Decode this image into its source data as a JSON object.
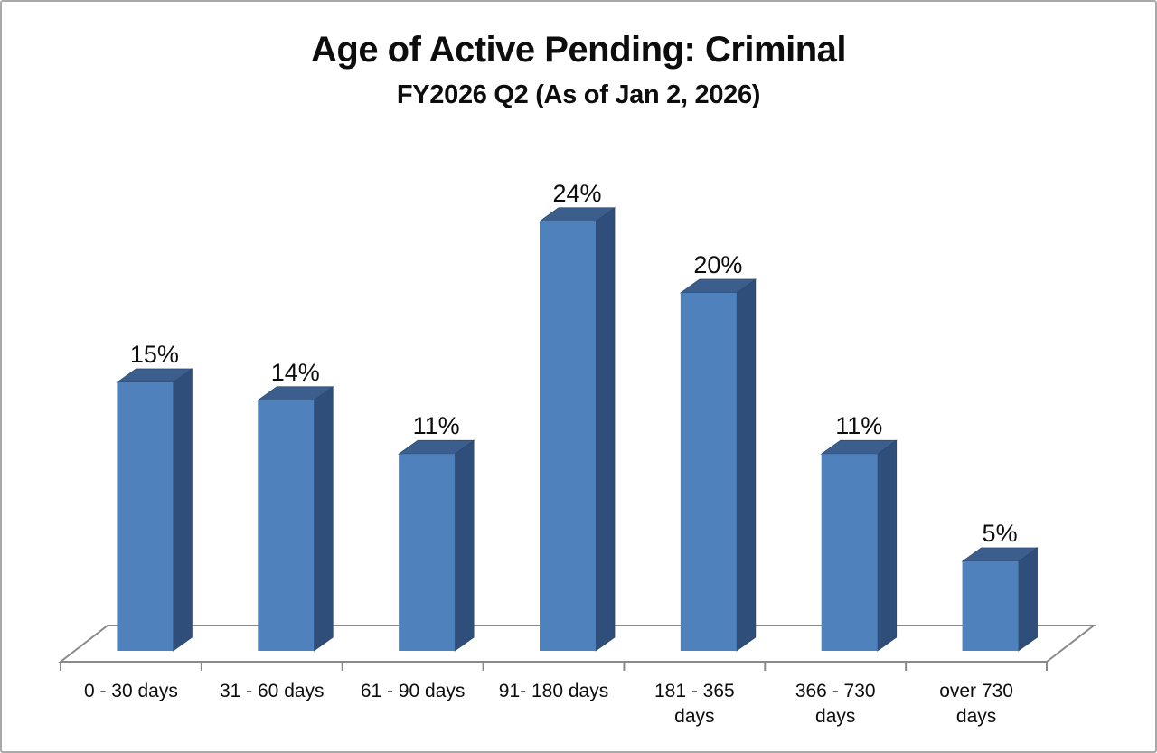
{
  "chart_data": {
    "type": "bar",
    "style": "3d-column",
    "title": "Age of Active Pending: Criminal",
    "subtitle": "FY2026 Q2 (As of Jan 2, 2026)",
    "categories": [
      "0 - 30 days",
      "31 - 60 days",
      "61 - 90 days",
      "91- 180 days",
      "181 - 365 days",
      "366 - 730 days",
      "over 730 days"
    ],
    "category_label_lines": [
      [
        "0 - 30 days"
      ],
      [
        "31 - 60 days"
      ],
      [
        "61 - 90 days"
      ],
      [
        "91- 180 days"
      ],
      [
        "181 - 365",
        "days"
      ],
      [
        "366 - 730",
        "days"
      ],
      [
        "over 730",
        "days"
      ]
    ],
    "values": [
      15,
      14,
      11,
      24,
      20,
      11,
      5
    ],
    "value_labels": [
      "15%",
      "14%",
      "11%",
      "24%",
      "20%",
      "11%",
      "5%"
    ],
    "unit": "percent of active pending cases",
    "xlabel": "",
    "ylabel": "",
    "ylim": [
      0,
      26
    ],
    "gridlines": "off",
    "legend": "none",
    "colors": {
      "bar_front": "#4F81BD",
      "bar_top": "#3B5E8D",
      "bar_side": "#2F4E7A",
      "bar_edge": "#2C4A6F",
      "axis_line": "#8A8A8A",
      "text": "#0d0d0d",
      "background": "#FFFFFF",
      "canvas_border": "#A9A9A9"
    }
  }
}
